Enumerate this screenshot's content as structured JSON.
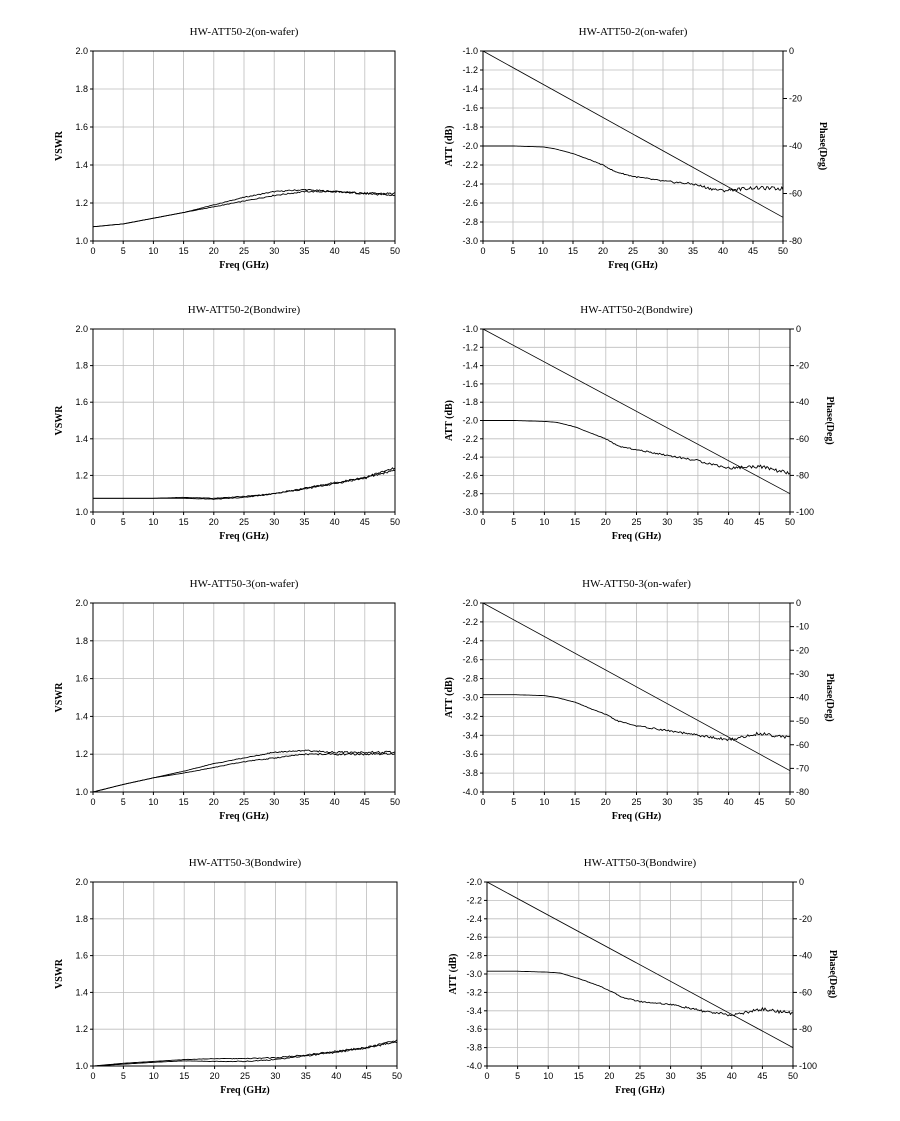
{
  "chart_data": [
    {
      "type": "line",
      "title": "HW-ATT50-2(on-wafer)",
      "xlabel": "Freq (GHz)",
      "ylabel": "VSWR",
      "xlim": [
        0,
        50
      ],
      "ylim": [
        1.0,
        2.0
      ],
      "xticks": [
        "0",
        "5",
        "10",
        "15",
        "20",
        "25",
        "30",
        "35",
        "40",
        "45",
        "50"
      ],
      "yticks": [
        "1.0",
        "1.2",
        "1.4",
        "1.6",
        "1.8",
        "2.0"
      ],
      "grid": true,
      "series": [
        {
          "x": [
            0,
            5,
            10,
            15,
            20,
            25,
            30,
            35,
            40,
            45,
            50
          ],
          "values": [
            1.075,
            1.09,
            1.12,
            1.15,
            1.19,
            1.23,
            1.26,
            1.27,
            1.26,
            1.25,
            1.24
          ]
        },
        {
          "x": [
            0,
            5,
            10,
            15,
            20,
            25,
            30,
            35,
            40,
            45,
            50
          ],
          "values": [
            1.075,
            1.09,
            1.12,
            1.15,
            1.18,
            1.21,
            1.24,
            1.26,
            1.26,
            1.25,
            1.25
          ]
        }
      ]
    },
    {
      "type": "line",
      "title": "HW-ATT50-2(on-wafer)",
      "xlabel": "Freq (GHz)",
      "ylabel": "ATT (dB)",
      "y2label": "Phase(Deg)",
      "xlim": [
        0,
        50
      ],
      "ylim": [
        -3.0,
        -1.0
      ],
      "y2lim": [
        -80,
        0
      ],
      "xticks": [
        "0",
        "5",
        "10",
        "15",
        "20",
        "25",
        "30",
        "35",
        "40",
        "45",
        "50"
      ],
      "yticks": [
        "-1.0",
        "-1.2",
        "-1.4",
        "-1.6",
        "-1.8",
        "-2.0",
        "-2.2",
        "-2.4",
        "-2.6",
        "-2.8",
        "-3.0"
      ],
      "y2ticks": [
        "0",
        "-20",
        "-40",
        "-60",
        "-80"
      ],
      "grid": true,
      "series": [
        {
          "axis": "left",
          "x": [
            0,
            5,
            10,
            12,
            15,
            18,
            20,
            22,
            25,
            30,
            35,
            38,
            40,
            45,
            50
          ],
          "values": [
            -2.0,
            -2.0,
            -2.01,
            -2.03,
            -2.08,
            -2.15,
            -2.2,
            -2.27,
            -2.32,
            -2.37,
            -2.4,
            -2.45,
            -2.47,
            -2.44,
            -2.45
          ]
        },
        {
          "axis": "right",
          "x": [
            0,
            50
          ],
          "values": [
            0,
            -70
          ]
        }
      ]
    },
    {
      "type": "line",
      "title": "HW-ATT50-2(Bondwire)",
      "xlabel": "Freq (GHz)",
      "ylabel": "VSWR",
      "xlim": [
        0,
        50
      ],
      "ylim": [
        1.0,
        2.0
      ],
      "xticks": [
        "0",
        "5",
        "10",
        "15",
        "20",
        "25",
        "30",
        "35",
        "40",
        "45",
        "50"
      ],
      "yticks": [
        "1.0",
        "1.2",
        "1.4",
        "1.6",
        "1.8",
        "2.0"
      ],
      "grid": true,
      "series": [
        {
          "x": [
            0,
            5,
            10,
            15,
            20,
            25,
            30,
            35,
            40,
            45,
            50
          ],
          "values": [
            1.075,
            1.075,
            1.075,
            1.075,
            1.07,
            1.08,
            1.1,
            1.13,
            1.16,
            1.19,
            1.24
          ]
        },
        {
          "x": [
            0,
            5,
            10,
            15,
            20,
            25,
            30,
            35,
            40,
            45,
            50
          ],
          "values": [
            1.075,
            1.075,
            1.075,
            1.08,
            1.075,
            1.085,
            1.1,
            1.125,
            1.155,
            1.185,
            1.23
          ]
        }
      ]
    },
    {
      "type": "line",
      "title": "HW-ATT50-2(Bondwire)",
      "xlabel": "Freq (GHz)",
      "ylabel": "ATT (dB)",
      "y2label": "Phase(Deg)",
      "xlim": [
        0,
        50
      ],
      "ylim": [
        -3.0,
        -1.0
      ],
      "y2lim": [
        -100,
        0
      ],
      "xticks": [
        "0",
        "5",
        "10",
        "15",
        "20",
        "25",
        "30",
        "35",
        "40",
        "45",
        "50"
      ],
      "yticks": [
        "-1.0",
        "-1.2",
        "-1.4",
        "-1.6",
        "-1.8",
        "-2.0",
        "-2.2",
        "-2.4",
        "-2.6",
        "-2.8",
        "-3.0"
      ],
      "y2ticks": [
        "0",
        "-20",
        "-40",
        "-60",
        "-80",
        "-100"
      ],
      "grid": true,
      "series": [
        {
          "axis": "left",
          "x": [
            0,
            5,
            10,
            12,
            15,
            18,
            20,
            22,
            25,
            30,
            35,
            40,
            45,
            50
          ],
          "values": [
            -2.0,
            -2.0,
            -2.01,
            -2.02,
            -2.07,
            -2.15,
            -2.2,
            -2.28,
            -2.32,
            -2.38,
            -2.44,
            -2.52,
            -2.5,
            -2.58
          ]
        },
        {
          "axis": "right",
          "x": [
            0,
            50
          ],
          "values": [
            0,
            -90
          ]
        }
      ]
    },
    {
      "type": "line",
      "title": "HW-ATT50-3(on-wafer)",
      "xlabel": "Freq (GHz)",
      "ylabel": "VSWR",
      "xlim": [
        0,
        50
      ],
      "ylim": [
        1.0,
        2.0
      ],
      "xticks": [
        "0",
        "5",
        "10",
        "15",
        "20",
        "25",
        "30",
        "35",
        "40",
        "45",
        "50"
      ],
      "yticks": [
        "1.0",
        "1.2",
        "1.4",
        "1.6",
        "1.8",
        "2.0"
      ],
      "grid": true,
      "series": [
        {
          "x": [
            0,
            5,
            10,
            15,
            20,
            25,
            30,
            35,
            40,
            45,
            50
          ],
          "values": [
            1.0,
            1.04,
            1.075,
            1.11,
            1.15,
            1.18,
            1.21,
            1.22,
            1.21,
            1.21,
            1.21
          ]
        },
        {
          "x": [
            0,
            5,
            10,
            15,
            20,
            25,
            30,
            35,
            40,
            45,
            50
          ],
          "values": [
            1.0,
            1.04,
            1.075,
            1.1,
            1.13,
            1.16,
            1.18,
            1.2,
            1.2,
            1.2,
            1.2
          ]
        }
      ]
    },
    {
      "type": "line",
      "title": "HW-ATT50-3(on-wafer)",
      "xlabel": "Freq (GHz)",
      "ylabel": "ATT (dB)",
      "y2label": "Phase(Deg)",
      "xlim": [
        0,
        50
      ],
      "ylim": [
        -4.0,
        -2.0
      ],
      "y2lim": [
        -80,
        0
      ],
      "xticks": [
        "0",
        "5",
        "10",
        "15",
        "20",
        "25",
        "30",
        "35",
        "40",
        "45",
        "50"
      ],
      "yticks": [
        "-2.0",
        "-2.2",
        "-2.4",
        "-2.6",
        "-2.8",
        "-3.0",
        "-3.2",
        "-3.4",
        "-3.6",
        "-3.8",
        "-4.0"
      ],
      "y2ticks": [
        "0",
        "-10",
        "-20",
        "-30",
        "-40",
        "-50",
        "-60",
        "-70",
        "-80"
      ],
      "grid": true,
      "series": [
        {
          "axis": "left",
          "x": [
            0,
            5,
            10,
            12,
            15,
            18,
            20,
            22,
            25,
            30,
            35,
            40,
            45,
            50
          ],
          "values": [
            -2.97,
            -2.97,
            -2.98,
            -3.0,
            -3.05,
            -3.13,
            -3.18,
            -3.25,
            -3.3,
            -3.35,
            -3.4,
            -3.45,
            -3.38,
            -3.42
          ]
        },
        {
          "axis": "right",
          "x": [
            0,
            50
          ],
          "values": [
            0,
            -71
          ]
        }
      ]
    },
    {
      "type": "line",
      "title": "HW-ATT50-3(Bondwire)",
      "xlabel": "Freq (GHz)",
      "ylabel": "VSWR",
      "xlim": [
        0,
        50
      ],
      "ylim": [
        1.0,
        2.0
      ],
      "xticks": [
        "0",
        "5",
        "10",
        "15",
        "20",
        "25",
        "30",
        "35",
        "40",
        "45",
        "50"
      ],
      "yticks": [
        "1.0",
        "1.2",
        "1.4",
        "1.6",
        "1.8",
        "2.0"
      ],
      "grid": true,
      "series": [
        {
          "x": [
            0,
            5,
            10,
            15,
            20,
            25,
            30,
            35,
            40,
            45,
            50
          ],
          "values": [
            1.0,
            1.015,
            1.025,
            1.035,
            1.04,
            1.04,
            1.045,
            1.06,
            1.08,
            1.1,
            1.14
          ]
        },
        {
          "x": [
            0,
            5,
            10,
            15,
            20,
            25,
            30,
            35,
            40,
            45,
            50
          ],
          "values": [
            1.0,
            1.01,
            1.02,
            1.028,
            1.025,
            1.025,
            1.035,
            1.055,
            1.075,
            1.1,
            1.13
          ]
        }
      ]
    },
    {
      "type": "line",
      "title": "HW-ATT50-3(Bondwire)",
      "xlabel": "Freq (GHz)",
      "ylabel": "ATT (dB)",
      "y2label": "Phase(Deg)",
      "xlim": [
        0,
        50
      ],
      "ylim": [
        -4.0,
        -2.0
      ],
      "y2lim": [
        -100,
        0
      ],
      "xticks": [
        "0",
        "5",
        "10",
        "15",
        "20",
        "25",
        "30",
        "35",
        "40",
        "45",
        "50"
      ],
      "yticks": [
        "-2.0",
        "-2.2",
        "-2.4",
        "-2.6",
        "-2.8",
        "-3.0",
        "-3.2",
        "-3.4",
        "-3.6",
        "-3.8",
        "-4.0"
      ],
      "y2ticks": [
        "0",
        "-20",
        "-40",
        "-60",
        "-80",
        "-100"
      ],
      "grid": true,
      "series": [
        {
          "axis": "left",
          "x": [
            0,
            5,
            10,
            12,
            15,
            18,
            20,
            22,
            25,
            30,
            35,
            40,
            45,
            50
          ],
          "values": [
            -2.97,
            -2.97,
            -2.98,
            -2.99,
            -3.05,
            -3.12,
            -3.18,
            -3.25,
            -3.3,
            -3.33,
            -3.4,
            -3.45,
            -3.38,
            -3.43
          ]
        },
        {
          "axis": "right",
          "x": [
            0,
            50
          ],
          "values": [
            0,
            -90
          ]
        }
      ]
    }
  ]
}
